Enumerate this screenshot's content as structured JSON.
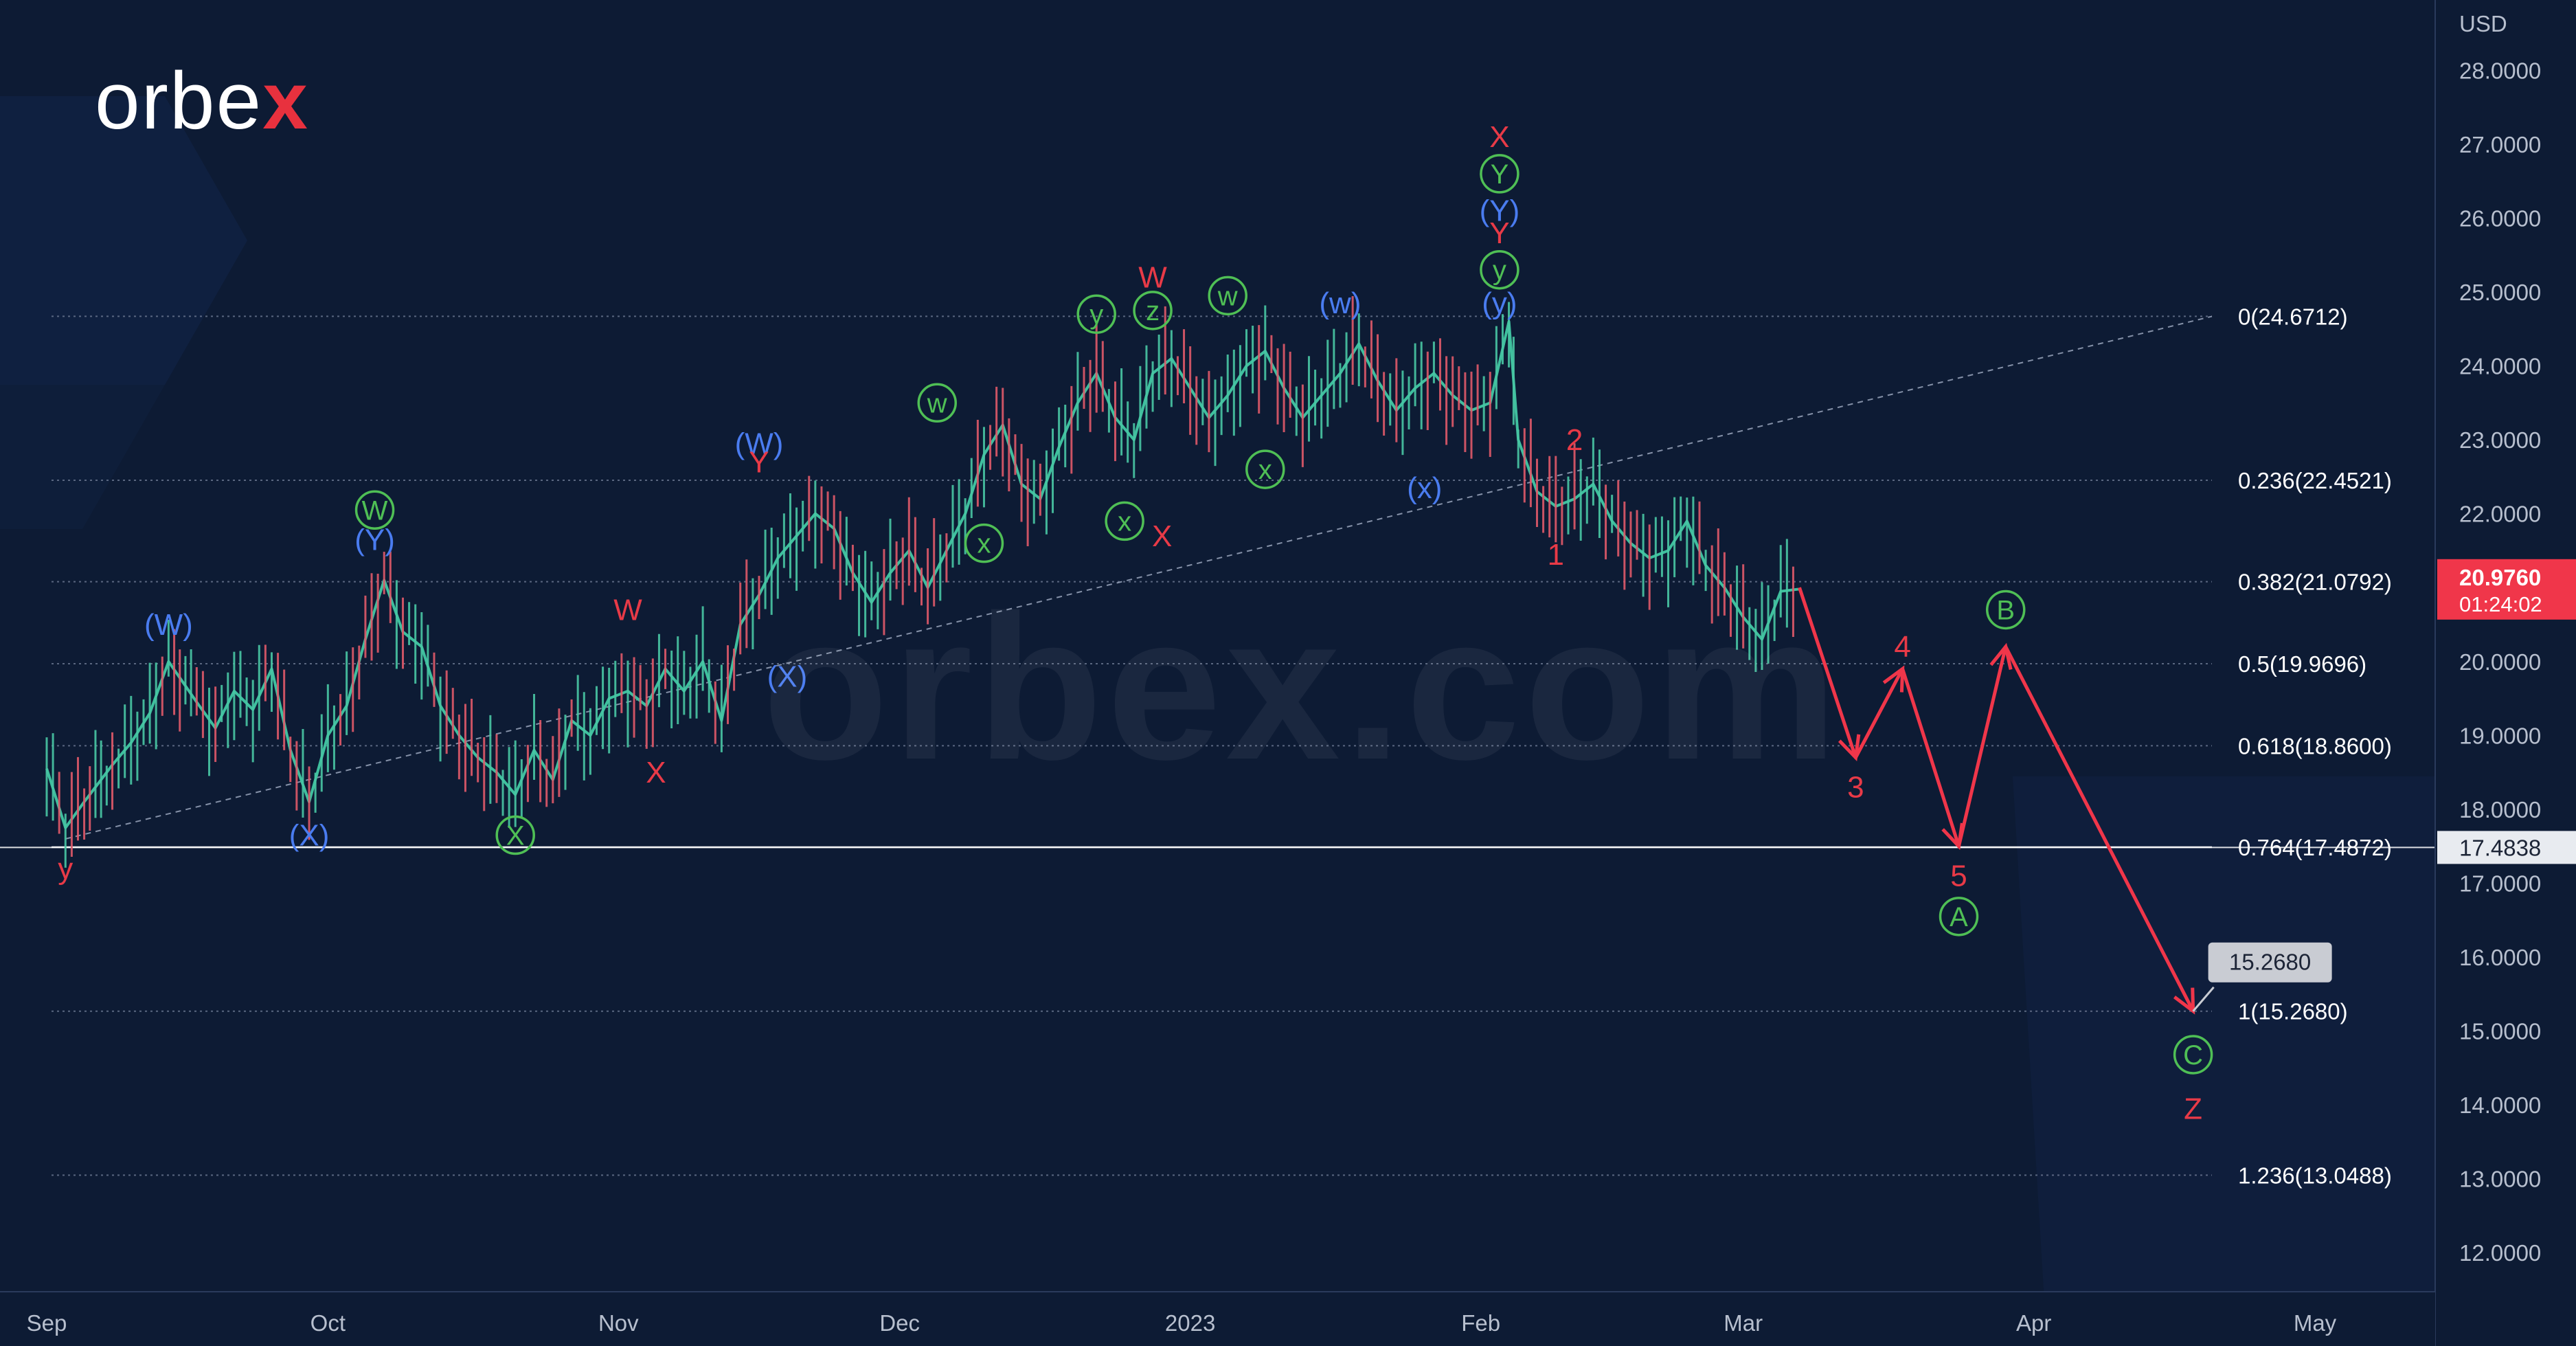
{
  "brand": {
    "name_prefix": "orbe",
    "name_suffix": "x",
    "watermark": "orbex.com"
  },
  "colors": {
    "background": "#0d1b34",
    "candle": "#3fbf9e",
    "forecast": "#f0364a",
    "label_red": "#e83a47",
    "label_blue": "#4a7cf0",
    "label_green": "#4fbf55",
    "fib_line": "#6e7a93",
    "axis_text": "#b7bfce",
    "price_tag": "#f0364a"
  },
  "chart_data": {
    "type": "line",
    "instrument_unit": "USD",
    "y_range": [
      11.5,
      28.7
    ],
    "y_ticks": [
      "12.0000",
      "13.0000",
      "14.0000",
      "15.0000",
      "16.0000",
      "17.0000",
      "18.0000",
      "19.0000",
      "20.0000",
      "21.0000",
      "22.0000",
      "23.0000",
      "24.0000",
      "25.0000",
      "26.0000",
      "27.0000",
      "28.0000"
    ],
    "x_ticks": [
      {
        "label": "Sep",
        "date": "2022-09-01"
      },
      {
        "label": "Oct",
        "date": "2022-10-01"
      },
      {
        "label": "Nov",
        "date": "2022-11-01"
      },
      {
        "label": "Dec",
        "date": "2022-12-01"
      },
      {
        "label": "2023",
        "date": "2023-01-01"
      },
      {
        "label": "Feb",
        "date": "2023-02-01"
      },
      {
        "label": "Mar",
        "date": "2023-03-01"
      },
      {
        "label": "Apr",
        "date": "2023-04-01"
      },
      {
        "label": "May",
        "date": "2023-05-01"
      }
    ],
    "x_range": [
      "2022-09-01",
      "2023-05-15"
    ],
    "price_series": {
      "name": "",
      "points": [
        [
          "2022-09-01",
          18.55
        ],
        [
          "2022-09-03",
          17.75
        ],
        [
          "2022-09-05",
          18.1
        ],
        [
          "2022-09-08",
          18.6
        ],
        [
          "2022-09-10",
          18.9
        ],
        [
          "2022-09-12",
          19.3
        ],
        [
          "2022-09-14",
          20.0
        ],
        [
          "2022-09-17",
          19.45
        ],
        [
          "2022-09-19",
          19.1
        ],
        [
          "2022-09-21",
          19.6
        ],
        [
          "2022-09-23",
          19.35
        ],
        [
          "2022-09-25",
          19.9
        ],
        [
          "2022-09-27",
          18.8
        ],
        [
          "2022-09-29",
          18.1
        ],
        [
          "2022-10-01",
          19.0
        ],
        [
          "2022-10-03",
          19.4
        ],
        [
          "2022-10-05",
          20.3
        ],
        [
          "2022-10-07",
          21.1
        ],
        [
          "2022-10-09",
          20.4
        ],
        [
          "2022-10-11",
          20.2
        ],
        [
          "2022-10-13",
          19.4
        ],
        [
          "2022-10-15",
          19.0
        ],
        [
          "2022-10-17",
          18.7
        ],
        [
          "2022-10-19",
          18.5
        ],
        [
          "2022-10-21",
          18.2
        ],
        [
          "2022-10-23",
          18.8
        ],
        [
          "2022-10-25",
          18.4
        ],
        [
          "2022-10-27",
          19.2
        ],
        [
          "2022-10-29",
          19.0
        ],
        [
          "2022-10-31",
          19.5
        ],
        [
          "2022-11-02",
          19.6
        ],
        [
          "2022-11-04",
          19.4
        ],
        [
          "2022-11-06",
          19.9
        ],
        [
          "2022-11-08",
          19.6
        ],
        [
          "2022-11-10",
          20.0
        ],
        [
          "2022-11-12",
          19.2
        ],
        [
          "2022-11-14",
          20.5
        ],
        [
          "2022-11-16",
          20.9
        ],
        [
          "2022-11-18",
          21.4
        ],
        [
          "2022-11-20",
          21.7
        ],
        [
          "2022-11-22",
          22.0
        ],
        [
          "2022-11-24",
          21.8
        ],
        [
          "2022-11-26",
          21.2
        ],
        [
          "2022-11-28",
          20.8
        ],
        [
          "2022-11-30",
          21.2
        ],
        [
          "2022-12-02",
          21.5
        ],
        [
          "2022-12-04",
          21.0
        ],
        [
          "2022-12-06",
          21.5
        ],
        [
          "2022-12-08",
          22.0
        ],
        [
          "2022-12-10",
          22.8
        ],
        [
          "2022-12-12",
          23.2
        ],
        [
          "2022-12-14",
          22.4
        ],
        [
          "2022-12-16",
          22.2
        ],
        [
          "2022-12-18",
          22.9
        ],
        [
          "2022-12-20",
          23.5
        ],
        [
          "2022-12-22",
          23.9
        ],
        [
          "2022-12-24",
          23.3
        ],
        [
          "2022-12-26",
          23.0
        ],
        [
          "2022-12-28",
          23.9
        ],
        [
          "2022-12-30",
          24.1
        ],
        [
          "2023-01-01",
          23.7
        ],
        [
          "2023-01-03",
          23.3
        ],
        [
          "2023-01-05",
          23.6
        ],
        [
          "2023-01-07",
          24.0
        ],
        [
          "2023-01-09",
          24.2
        ],
        [
          "2023-01-11",
          23.7
        ],
        [
          "2023-01-13",
          23.3
        ],
        [
          "2023-01-15",
          23.6
        ],
        [
          "2023-01-17",
          23.9
        ],
        [
          "2023-01-19",
          24.3
        ],
        [
          "2023-01-21",
          23.8
        ],
        [
          "2023-01-23",
          23.4
        ],
        [
          "2023-01-25",
          23.7
        ],
        [
          "2023-01-27",
          23.9
        ],
        [
          "2023-01-29",
          23.6
        ],
        [
          "2023-01-31",
          23.4
        ],
        [
          "2023-02-02",
          23.5
        ],
        [
          "2023-02-04",
          24.6
        ],
        [
          "2023-02-05",
          23.0
        ],
        [
          "2023-02-07",
          22.3
        ],
        [
          "2023-02-09",
          22.1
        ],
        [
          "2023-02-11",
          22.2
        ],
        [
          "2023-02-13",
          22.4
        ],
        [
          "2023-02-15",
          21.9
        ],
        [
          "2023-02-17",
          21.6
        ],
        [
          "2023-02-19",
          21.4
        ],
        [
          "2023-02-21",
          21.5
        ],
        [
          "2023-02-23",
          21.9
        ],
        [
          "2023-02-25",
          21.3
        ],
        [
          "2023-02-27",
          21.0
        ],
        [
          "2023-03-01",
          20.6
        ],
        [
          "2023-03-03",
          20.3
        ],
        [
          "2023-03-05",
          20.95
        ],
        [
          "2023-03-07",
          20.98
        ]
      ]
    },
    "current_price": "20.9760",
    "current_countdown": "01:24:02",
    "crosshair_price": "17.4838",
    "target_callout": "15.2680",
    "fib_levels": [
      {
        "label": "0(24.6712)",
        "value": 24.6712
      },
      {
        "label": "0.236(22.4521)",
        "value": 22.4521
      },
      {
        "label": "0.382(21.0792)",
        "value": 21.0792
      },
      {
        "label": "0.5(19.9696)",
        "value": 19.9696
      },
      {
        "label": "0.618(18.8600)",
        "value": 18.86
      },
      {
        "label": "0.764(17.4872)",
        "value": 17.4872
      },
      {
        "label": "1(15.2680)",
        "value": 15.268
      },
      {
        "label": "1.236(13.0488)",
        "value": 13.0488
      }
    ],
    "trendline": {
      "from": [
        "2022-09-03",
        17.6
      ],
      "to": [
        "2023-05-10",
        24.67
      ]
    },
    "forecast_path": [
      [
        "2023-03-07",
        21.0
      ],
      [
        "2023-03-13",
        18.7
      ],
      [
        "2023-03-18",
        19.9
      ],
      [
        "2023-03-24",
        17.5
      ],
      [
        "2023-03-29",
        20.2
      ],
      [
        "2023-04-18",
        15.27
      ]
    ],
    "wave_labels": [
      {
        "text": "y",
        "date": "2022-09-03",
        "price": 17.2,
        "style": "red"
      },
      {
        "text": "(W)",
        "date": "2022-09-14",
        "price": 20.5,
        "style": "blue"
      },
      {
        "text": "(X)",
        "date": "2022-09-29",
        "price": 17.65,
        "style": "blue"
      },
      {
        "text": "(Y)",
        "date": "2022-10-06",
        "price": 21.65,
        "style": "blue"
      },
      {
        "text": "W",
        "date": "2022-10-06",
        "price": 22.05,
        "style": "green-circle"
      },
      {
        "text": "X",
        "date": "2022-10-21",
        "price": 17.65,
        "style": "green-circle"
      },
      {
        "text": "W",
        "date": "2022-11-02",
        "price": 20.7,
        "style": "red"
      },
      {
        "text": "X",
        "date": "2022-11-05",
        "price": 18.5,
        "style": "red"
      },
      {
        "text": "(W)",
        "date": "2022-11-16",
        "price": 22.95,
        "style": "blue"
      },
      {
        "text": "Y",
        "date": "2022-11-16",
        "price": 22.7,
        "style": "red"
      },
      {
        "text": "(X)",
        "date": "2022-11-19",
        "price": 19.8,
        "style": "blue"
      },
      {
        "text": "w",
        "date": "2022-12-05",
        "price": 23.5,
        "style": "green-circle"
      },
      {
        "text": "x",
        "date": "2022-12-10",
        "price": 21.6,
        "style": "green-circle"
      },
      {
        "text": "y",
        "date": "2022-12-22",
        "price": 24.7,
        "style": "green-circle"
      },
      {
        "text": "x",
        "date": "2022-12-25",
        "price": 21.9,
        "style": "green-circle"
      },
      {
        "text": "z",
        "date": "2022-12-28",
        "price": 24.75,
        "style": "green-circle"
      },
      {
        "text": "W",
        "date": "2022-12-28",
        "price": 25.2,
        "style": "red"
      },
      {
        "text": "X",
        "date": "2022-12-29",
        "price": 21.7,
        "style": "red"
      },
      {
        "text": "w",
        "date": "2023-01-05",
        "price": 24.95,
        "style": "green-circle"
      },
      {
        "text": "x",
        "date": "2023-01-09",
        "price": 22.6,
        "style": "green-circle"
      },
      {
        "text": "(w)",
        "date": "2023-01-17",
        "price": 24.85,
        "style": "blue"
      },
      {
        "text": "(x)",
        "date": "2023-01-26",
        "price": 22.35,
        "style": "blue"
      },
      {
        "text": "(y)",
        "date": "2023-02-03",
        "price": 24.85,
        "style": "blue"
      },
      {
        "text": "y",
        "date": "2023-02-03",
        "price": 25.3,
        "style": "green-circle"
      },
      {
        "text": "Y",
        "date": "2023-02-03",
        "price": 25.8,
        "style": "red"
      },
      {
        "text": "(Y)",
        "date": "2023-02-03",
        "price": 26.1,
        "style": "blue"
      },
      {
        "text": "Y",
        "date": "2023-02-03",
        "price": 26.6,
        "style": "green-circle"
      },
      {
        "text": "X",
        "date": "2023-02-03",
        "price": 27.1,
        "style": "red"
      },
      {
        "text": "1",
        "date": "2023-02-09",
        "price": 21.45,
        "style": "red"
      },
      {
        "text": "2",
        "date": "2023-02-11",
        "price": 23.0,
        "style": "red"
      },
      {
        "text": "3",
        "date": "2023-03-13",
        "price": 18.3,
        "style": "red"
      },
      {
        "text": "4",
        "date": "2023-03-18",
        "price": 20.2,
        "style": "red"
      },
      {
        "text": "5",
        "date": "2023-03-24",
        "price": 17.1,
        "style": "red"
      },
      {
        "text": "A",
        "date": "2023-03-24",
        "price": 16.55,
        "style": "green-circle"
      },
      {
        "text": "B",
        "date": "2023-03-29",
        "price": 20.7,
        "style": "green-circle"
      },
      {
        "text": "C",
        "date": "2023-04-18",
        "price": 14.68,
        "style": "green-circle"
      },
      {
        "text": "Z",
        "date": "2023-04-18",
        "price": 13.95,
        "style": "red"
      }
    ]
  }
}
